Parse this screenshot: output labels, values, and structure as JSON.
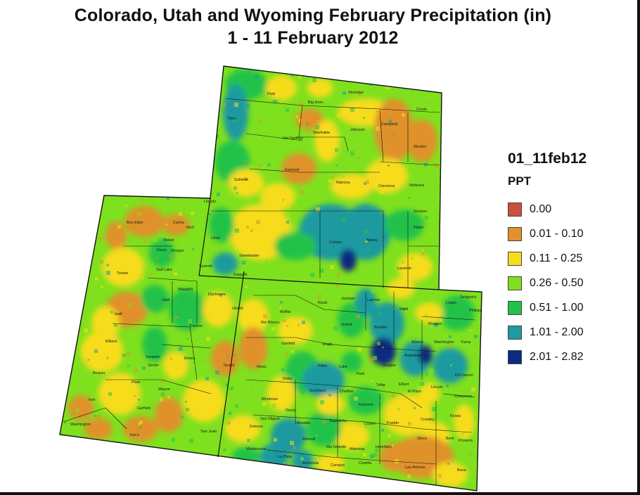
{
  "title": {
    "line1": "Colorado, Utah and Wyoming February Precipitation (in)",
    "line2": "1 - 11 February 2012"
  },
  "legend": {
    "layer": "01_11feb12",
    "field": "PPT",
    "classes": [
      {
        "label": "0.00",
        "color": "#c9503c"
      },
      {
        "label": "0.01 - 0.10",
        "color": "#e0912a"
      },
      {
        "label": "0.11 - 0.25",
        "color": "#f7dc1e"
      },
      {
        "label": "0.26 - 0.50",
        "color": "#7fe01e"
      },
      {
        "label": "0.51 - 1.00",
        "color": "#22c248"
      },
      {
        "label": "1.01 - 2.00",
        "color": "#1e9aa0"
      },
      {
        "label": "2.01 - 2.82",
        "color": "#0c2a80"
      }
    ]
  },
  "map": {
    "region": [
      "Colorado",
      "Utah",
      "Wyoming"
    ],
    "counties_wy": [
      "Park",
      "Big Horn",
      "Sheridan",
      "Crook",
      "Teton",
      "Washakie",
      "Johnson",
      "Campbell",
      "Weston",
      "Hot Springs",
      "Fremont",
      "Sublette",
      "Natrona",
      "Converse",
      "Niobrara",
      "Lincoln",
      "Sweetwater",
      "Carbon",
      "Albany",
      "Platte",
      "Goshen",
      "Uinta",
      "Laramie"
    ],
    "counties_ut": [
      "Box Elder",
      "Cache",
      "Rich",
      "Weber",
      "Davis",
      "Morgan",
      "Tooele",
      "Salt Lake",
      "Summit",
      "Daggett",
      "Wasatch",
      "Utah",
      "Duchesne",
      "Uintah",
      "Juab",
      "Carbon",
      "Millard",
      "Sanpete",
      "Emery",
      "Grand",
      "Sevier",
      "Beaver",
      "Piute",
      "Wayne",
      "Iron",
      "Garfield",
      "Washington",
      "Kane",
      "San Juan"
    ],
    "counties_co": [
      "Moffat",
      "Routt",
      "Jackson",
      "Larimer",
      "Weld",
      "Logan",
      "Sedgwick",
      "Phillips",
      "Rio Blanco",
      "Grand",
      "Boulder",
      "Morgan",
      "Garfield",
      "Eagle",
      "Adams",
      "Washington",
      "Yuma",
      "Arapahoe",
      "Mesa",
      "Pitkin",
      "Lake",
      "Park",
      "Douglas",
      "Elbert",
      "Kit Carson",
      "Delta",
      "Gunnison",
      "Chaffee",
      "Teller",
      "El Paso",
      "Lincoln",
      "Montrose",
      "Cheyenne",
      "Ouray",
      "Fremont",
      "San Miguel",
      "Hinsdale",
      "Saguache",
      "Custer",
      "Pueblo",
      "Crowley",
      "Kiowa",
      "Dolores",
      "Otero",
      "Bent",
      "Prowers",
      "Mineral",
      "Rio Grande",
      "Alamosa",
      "Huerfano",
      "Montezuma",
      "La Plata",
      "Archuleta",
      "Conejos",
      "Costilla",
      "Las Animas",
      "Baca"
    ]
  }
}
